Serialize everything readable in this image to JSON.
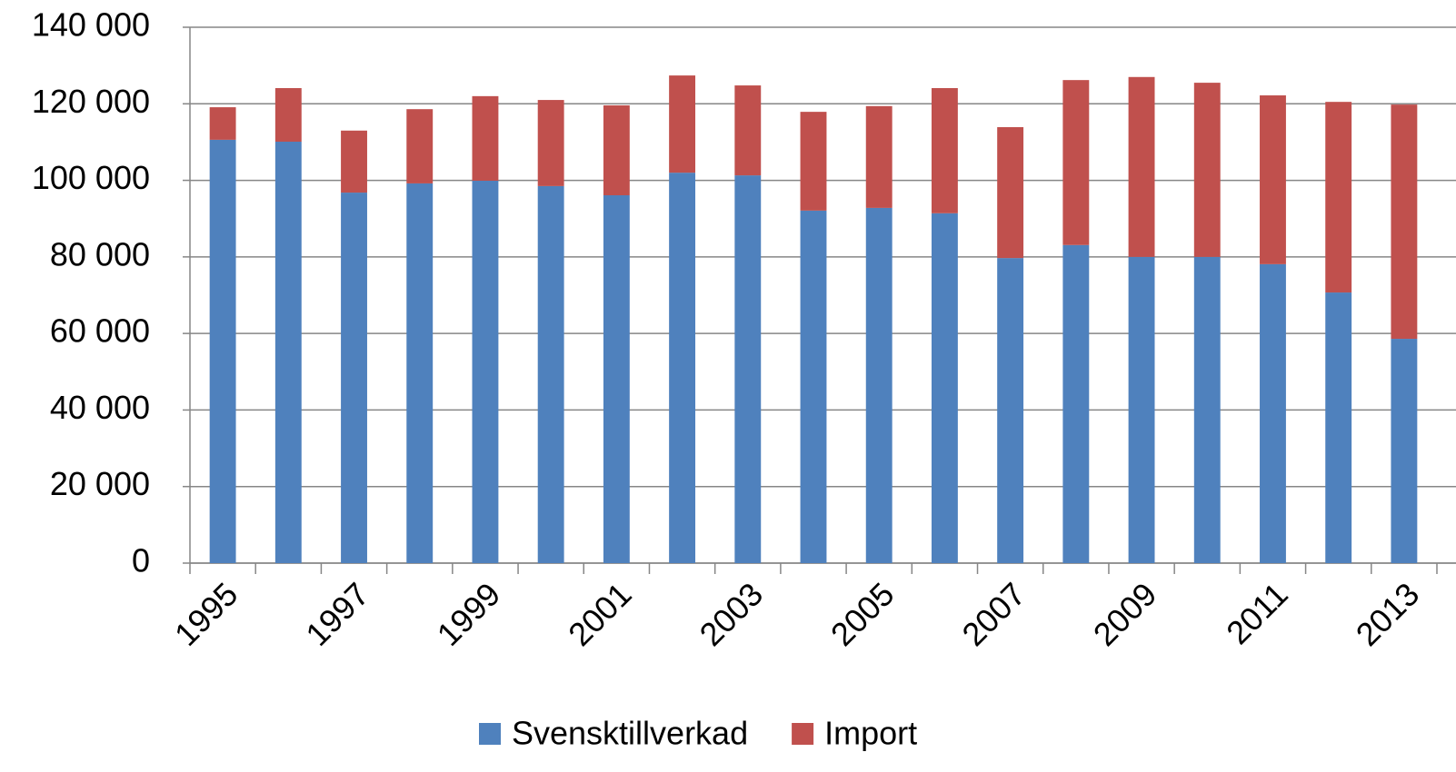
{
  "chart_data": {
    "type": "stacked_bar",
    "categories": [
      "1995",
      null,
      "1997",
      null,
      "1999",
      null,
      "2001",
      null,
      "2003",
      null,
      "2005",
      null,
      "2007",
      null,
      "2009",
      null,
      "2011",
      null,
      "2013"
    ],
    "series": [
      {
        "name": "Svensktillverkad",
        "color": "#4f81bd",
        "values": [
          110600,
          110100,
          96800,
          99200,
          99900,
          98500,
          96100,
          102000,
          101300,
          92100,
          92800,
          91400,
          79700,
          83100,
          80000,
          80000,
          78100,
          70700,
          58600
        ]
      },
      {
        "name": "Import",
        "color": "#c0504d",
        "values": [
          8500,
          14000,
          16200,
          19400,
          22100,
          22500,
          23500,
          25400,
          23500,
          25800,
          26600,
          32700,
          34200,
          43100,
          47000,
          45500,
          44100,
          49800,
          61200
        ]
      }
    ],
    "ylim": [
      0,
      140000
    ],
    "yticks": [
      0,
      {
        "value": 20000,
        "label": "20 000"
      },
      {
        "value": 40000,
        "label": "40 000"
      },
      {
        "value": 60000,
        "label": "60 000"
      },
      {
        "value": 80000,
        "label": "80 000"
      },
      {
        "value": 100000,
        "label": "100 000"
      },
      {
        "value": 120000,
        "label": "120 000"
      },
      {
        "value": 140000,
        "label": "140 000"
      }
    ],
    "grid": true,
    "legend": "bottom"
  }
}
